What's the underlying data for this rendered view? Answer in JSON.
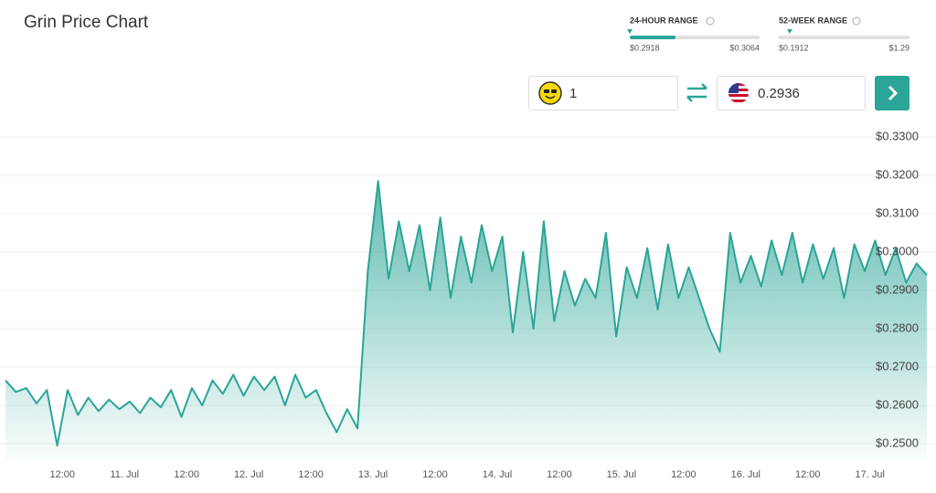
{
  "chart_data": {
    "type": "area",
    "title": "Grin Price Chart",
    "x": [
      1,
      3,
      5,
      7,
      9,
      11,
      13,
      15,
      17,
      19,
      21,
      23,
      25,
      27,
      29,
      31,
      33,
      35,
      37,
      39,
      41,
      43,
      45,
      47,
      49,
      51,
      53,
      55,
      57,
      59,
      61,
      63,
      65,
      67,
      69,
      71,
      73,
      75,
      77,
      79,
      81,
      83,
      85,
      87,
      89,
      91,
      93,
      95,
      97,
      99,
      101,
      103,
      105,
      107,
      109,
      111,
      113,
      115,
      117,
      119,
      121,
      123,
      125,
      127,
      129,
      131,
      133,
      135,
      137,
      139,
      141,
      143,
      145,
      147,
      149,
      151,
      153,
      155,
      157,
      159,
      161,
      163,
      165,
      167,
      169,
      171,
      173,
      175,
      177,
      179
    ],
    "series": [
      {
        "color": "#2aa597",
        "values": [
          0.2665,
          0.2635,
          0.2645,
          0.2605,
          0.264,
          0.2495,
          0.264,
          0.2575,
          0.262,
          0.2585,
          0.2615,
          0.259,
          0.261,
          0.258,
          0.262,
          0.2595,
          0.264,
          0.257,
          0.2645,
          0.26,
          0.2665,
          0.263,
          0.268,
          0.2625,
          0.2675,
          0.264,
          0.2675,
          0.26,
          0.268,
          0.262,
          0.264,
          0.258,
          0.253,
          0.259,
          0.254,
          0.295,
          0.3185,
          0.293,
          0.308,
          0.295,
          0.307,
          0.29,
          0.309,
          0.288,
          0.304,
          0.292,
          0.307,
          0.295,
          0.304,
          0.279,
          0.3,
          0.28,
          0.308,
          0.282,
          0.295,
          0.286,
          0.293,
          0.288,
          0.305,
          0.278,
          0.296,
          0.288,
          0.301,
          0.285,
          0.302,
          0.288,
          0.296,
          0.288,
          0.28,
          0.274,
          0.305,
          0.292,
          0.299,
          0.291,
          0.303,
          0.294,
          0.305,
          0.292,
          0.302,
          0.293,
          0.301,
          0.288,
          0.302,
          0.295,
          0.303,
          0.294,
          0.301,
          0.292,
          0.297,
          0.294
        ]
      }
    ],
    "xlim": [
      1,
      179
    ],
    "xticks": [
      {
        "value": 12,
        "label": "12:00"
      },
      {
        "value": 24,
        "label": "11. Jul"
      },
      {
        "value": 36,
        "label": "12:00"
      },
      {
        "value": 48,
        "label": "12. Jul"
      },
      {
        "value": 60,
        "label": "12:00"
      },
      {
        "value": 72,
        "label": "13. Jul"
      },
      {
        "value": 84,
        "label": "12:00"
      },
      {
        "value": 96,
        "label": "14. Jul"
      },
      {
        "value": 108,
        "label": "12:00"
      },
      {
        "value": 120,
        "label": "15. Jul"
      },
      {
        "value": 132,
        "label": "12:00"
      },
      {
        "value": 144,
        "label": "16. Jul"
      },
      {
        "value": 156,
        "label": "12:00"
      },
      {
        "value": 168,
        "label": "17. Jul"
      }
    ],
    "ylim": [
      0.2475,
      0.335
    ],
    "yticks": [
      {
        "value": 0.25,
        "label": "$0.2500"
      },
      {
        "value": 0.26,
        "label": "$0.2600"
      },
      {
        "value": 0.27,
        "label": "$0.2700"
      },
      {
        "value": 0.28,
        "label": "$0.2800"
      },
      {
        "value": 0.29,
        "label": "$0.2900"
      },
      {
        "value": 0.3,
        "label": "$0.3000"
      },
      {
        "value": 0.31,
        "label": "$0.3100"
      },
      {
        "value": 0.32,
        "label": "$0.3200"
      },
      {
        "value": 0.33,
        "label": "$0.3300"
      }
    ],
    "grid": true
  },
  "ranges": [
    {
      "label": "24-HOUR RANGE",
      "low": "$0.2918",
      "high": "$0.3064"
    },
    {
      "label": "52-WEEK RANGE",
      "low": "$0.1912",
      "high": "$1.29"
    }
  ],
  "converter": {
    "from_amount": "1",
    "to_amount": "0.2936"
  }
}
